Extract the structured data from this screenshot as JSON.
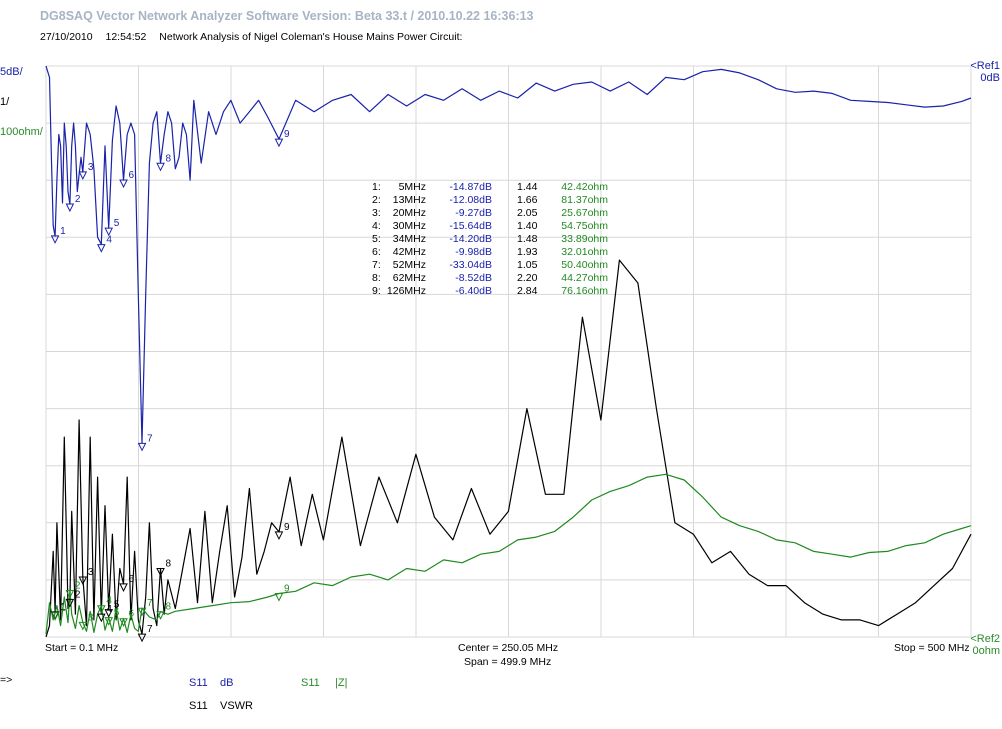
{
  "header": {
    "app_title": "DG8SAQ Vector Network Analyzer Software    Version:  Beta 33.t / 2010.10.22 16:36:13",
    "date": "27/10/2010",
    "time": "12:54:52",
    "caption": "Network Analysis of Nigel Coleman's House Mains Power Circuit:"
  },
  "scale": {
    "db_per_div": "5dB/",
    "vswr_per_div": "1/",
    "ohm_per_div": "100ohm/",
    "ref1_label": "<Ref1",
    "ref1_value": "0dB",
    "ref2_label": "<Ref2",
    "ref2_value": "0ohm"
  },
  "footer": {
    "start": "Start = 0.1 MHz",
    "center": "Center = 250.05 MHz",
    "span": "Span = 499.9 MHz",
    "stop": "Stop = 500 MHz",
    "prompt": "=>"
  },
  "legend": [
    {
      "param": "S11",
      "unit": "dB",
      "color": "#1a22aa"
    },
    {
      "param": "S11",
      "unit": "|Z|",
      "color": "#2a8a2a"
    },
    {
      "param": "S11",
      "unit": "VSWR",
      "color": "#000000"
    }
  ],
  "marker_table": [
    {
      "n": "1:",
      "freq": "5MHz",
      "db": "-14.87dB",
      "vswr": "1.44",
      "z": "42.42ohm"
    },
    {
      "n": "2:",
      "freq": "13MHz",
      "db": "-12.08dB",
      "vswr": "1.66",
      "z": "81.37ohm"
    },
    {
      "n": "3:",
      "freq": "20MHz",
      "db": "-9.27dB",
      "vswr": "2.05",
      "z": "25.67ohm"
    },
    {
      "n": "4:",
      "freq": "30MHz",
      "db": "-15.64dB",
      "vswr": "1.40",
      "z": "54.75ohm"
    },
    {
      "n": "5:",
      "freq": "34MHz",
      "db": "-14.20dB",
      "vswr": "1.48",
      "z": "33.89ohm"
    },
    {
      "n": "6:",
      "freq": "42MHz",
      "db": "-9.98dB",
      "vswr": "1.93",
      "z": "32.01ohm"
    },
    {
      "n": "7:",
      "freq": "52MHz",
      "db": "-33.04dB",
      "vswr": "1.05",
      "z": "50.40ohm"
    },
    {
      "n": "8:",
      "freq": "62MHz",
      "db": "-8.52dB",
      "vswr": "2.20",
      "z": "44.27ohm"
    },
    {
      "n": "9:",
      "freq": "126MHz",
      "db": "-6.40dB",
      "vswr": "2.84",
      "z": "76.16ohm"
    }
  ],
  "colors": {
    "db_trace": "#1a22aa",
    "vswr_trace": "#000000",
    "z_trace": "#1f8a1f",
    "grid": "#d8d8d8",
    "title": "#a8b4c4"
  },
  "chart_data": {
    "type": "line",
    "x_unit": "MHz",
    "xlim": [
      0.1,
      500
    ],
    "grid": true,
    "series": [
      {
        "name": "S11 dB",
        "x": [
          0.1,
          2,
          3,
          4,
          5,
          6,
          7,
          8,
          9,
          10,
          11,
          12,
          13,
          14,
          15,
          16,
          17,
          18,
          19,
          20,
          22,
          24,
          26,
          28,
          30,
          32,
          34,
          36,
          38,
          40,
          42,
          44,
          46,
          48,
          50,
          52,
          54,
          56,
          58,
          60,
          62,
          64,
          66,
          68,
          70,
          72,
          74,
          76,
          78,
          80,
          84,
          88,
          92,
          96,
          100,
          105,
          110,
          115,
          120,
          126,
          135,
          145,
          155,
          165,
          175,
          185,
          195,
          205,
          215,
          225,
          235,
          245,
          255,
          265,
          275,
          285,
          295,
          305,
          315,
          325,
          335,
          345,
          355,
          365,
          375,
          385,
          395,
          405,
          415,
          425,
          435,
          445,
          455,
          465,
          475,
          485,
          495,
          500
        ],
        "values": [
          0,
          -1,
          -8,
          -14,
          -14.9,
          -10,
          -6,
          -7,
          -12,
          -5,
          -7,
          -11,
          -12.1,
          -7,
          -5,
          -7,
          -11,
          -9.5,
          -8,
          -9.3,
          -5,
          -6,
          -9,
          -15,
          -15.6,
          -7,
          -14.2,
          -6.5,
          -3.5,
          -5,
          -10,
          -6,
          -5,
          -6,
          -20,
          -33,
          -20,
          -8.5,
          -5,
          -4,
          -8.5,
          -6,
          -4,
          -5,
          -9,
          -8,
          -5,
          -6,
          -10,
          -3,
          -8.5,
          -4,
          -6,
          -4,
          -3,
          -5,
          -4,
          -3,
          -4.5,
          -6.4,
          -3,
          -4,
          -3,
          -2.5,
          -4,
          -2.5,
          -3.5,
          -2.5,
          -3,
          -2,
          -3,
          -2.2,
          -2.8,
          -1.5,
          -2.2,
          -1.6,
          -1.4,
          -2.2,
          -1.4,
          -2.5,
          -1,
          -1.2,
          -0.5,
          -0.3,
          -0.6,
          -1.2,
          -2,
          -2.3,
          -2.2,
          -2.4,
          -3,
          -3.1,
          -3.2,
          -3.4,
          -3.6,
          -3.5,
          -3.1,
          -2.8
        ]
      },
      {
        "name": "S11 VSWR",
        "x": [
          0.1,
          2,
          4,
          5,
          6,
          8,
          10,
          12,
          13,
          14,
          16,
          18,
          20,
          22,
          24,
          26,
          28,
          30,
          32,
          34,
          36,
          38,
          40,
          42,
          44,
          46,
          48,
          50,
          52,
          54,
          56,
          58,
          60,
          62,
          64,
          66,
          70,
          74,
          78,
          82,
          86,
          90,
          94,
          98,
          102,
          106,
          110,
          114,
          118,
          122,
          126,
          132,
          138,
          144,
          150,
          160,
          170,
          180,
          190,
          200,
          210,
          220,
          230,
          240,
          250,
          260,
          270,
          280,
          290,
          300,
          310,
          320,
          330,
          340,
          350,
          360,
          370,
          380,
          390,
          400,
          410,
          420,
          430,
          440,
          450,
          460,
          470,
          480,
          490,
          500
        ],
        "values": [
          1,
          1.2,
          2.5,
          1.44,
          3,
          1.3,
          4.5,
          1.5,
          1.66,
          3.2,
          1.4,
          4.8,
          2.05,
          1.2,
          4.5,
          1.3,
          3.8,
          1.4,
          3.3,
          1.48,
          2.8,
          1.3,
          2.2,
          1.93,
          3.8,
          1.3,
          2.5,
          1.3,
          1.05,
          1.7,
          3,
          1.5,
          1.2,
          2.2,
          1.4,
          2,
          1.5,
          2.2,
          2.9,
          1.6,
          3.2,
          1.6,
          2.5,
          3.3,
          1.7,
          2.4,
          3.6,
          2.1,
          2.5,
          3,
          2.84,
          3.8,
          2.6,
          3.5,
          2.7,
          4.5,
          2.6,
          3.8,
          3,
          4.2,
          3.1,
          2.7,
          3.6,
          2.8,
          3.2,
          5,
          3.5,
          3.5,
          6.6,
          4.8,
          7.6,
          7.2,
          5,
          3,
          2.8,
          2.3,
          2.5,
          2.1,
          1.9,
          1.9,
          1.6,
          1.4,
          1.3,
          1.3,
          1.2,
          1.4,
          1.6,
          1.9,
          2.2,
          2.8
        ]
      },
      {
        "name": "S11 |Z|",
        "x": [
          0.1,
          2,
          4,
          5,
          6,
          8,
          10,
          12,
          13,
          14,
          16,
          18,
          20,
          22,
          24,
          26,
          28,
          30,
          32,
          34,
          36,
          38,
          40,
          42,
          44,
          46,
          48,
          50,
          52,
          56,
          60,
          62,
          66,
          70,
          80,
          90,
          100,
          110,
          120,
          126,
          135,
          145,
          155,
          165,
          175,
          185,
          195,
          205,
          215,
          225,
          235,
          245,
          255,
          265,
          275,
          285,
          295,
          305,
          315,
          325,
          335,
          345,
          355,
          365,
          375,
          385,
          395,
          405,
          415,
          425,
          435,
          445,
          455,
          465,
          475,
          485,
          495,
          500
        ],
        "values": [
          5,
          60,
          30,
          42.42,
          55,
          20,
          70,
          25,
          81.37,
          40,
          15,
          55,
          25.67,
          10,
          45,
          8,
          40,
          54.75,
          12,
          33.89,
          10,
          50,
          12,
          32.01,
          8,
          40,
          15,
          10,
          50.4,
          35,
          30,
          44.27,
          40,
          45,
          50,
          55,
          60,
          62,
          70,
          76.16,
          80,
          95,
          90,
          105,
          110,
          100,
          120,
          115,
          135,
          130,
          145,
          150,
          170,
          175,
          185,
          210,
          240,
          255,
          265,
          280,
          285,
          275,
          245,
          210,
          195,
          185,
          170,
          165,
          150,
          145,
          140,
          148,
          150,
          160,
          165,
          180,
          190,
          195
        ]
      }
    ]
  }
}
